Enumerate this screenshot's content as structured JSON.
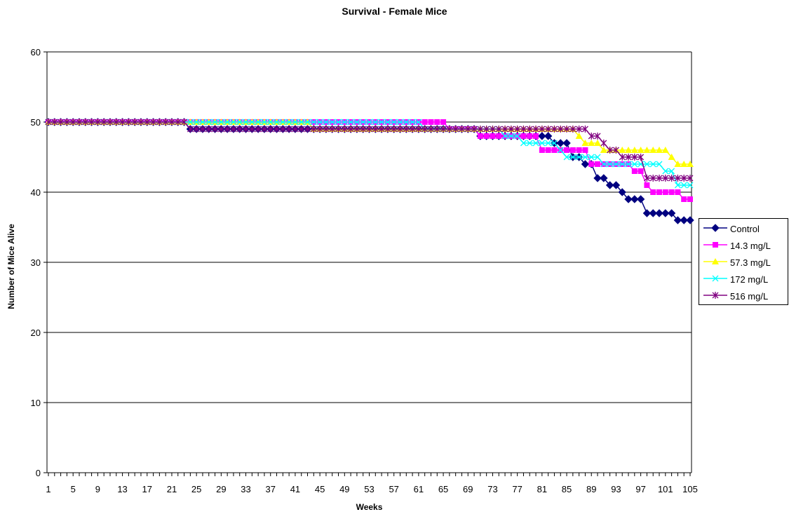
{
  "chart_data": {
    "type": "line",
    "title": "Survival - Female Mice",
    "xlabel": "Weeks",
    "ylabel": "Number of Mice Alive",
    "ylim": [
      0,
      60
    ],
    "yticks": [
      0,
      10,
      20,
      30,
      40,
      50,
      60
    ],
    "xlim": [
      1,
      105
    ],
    "x_tick_labels": [
      1,
      5,
      9,
      13,
      17,
      21,
      25,
      29,
      33,
      37,
      41,
      45,
      49,
      53,
      57,
      61,
      65,
      69,
      73,
      77,
      81,
      85,
      89,
      93,
      97,
      101,
      105
    ],
    "grid": "horizontal major gridlines",
    "legend_position": "right",
    "series": [
      {
        "name": "Control",
        "color": "#000080",
        "marker": "diamond",
        "steps": [
          [
            1,
            50
          ],
          [
            24,
            49
          ],
          [
            71,
            48
          ],
          [
            83,
            47
          ],
          [
            86,
            45
          ],
          [
            88,
            44
          ],
          [
            90,
            42
          ],
          [
            92,
            41
          ],
          [
            94,
            40
          ],
          [
            95,
            39
          ],
          [
            98,
            37
          ],
          [
            103,
            36
          ]
        ]
      },
      {
        "name": "14.3 mg/L",
        "color": "#FF00FF",
        "marker": "square",
        "steps": [
          [
            1,
            50
          ],
          [
            66,
            49
          ],
          [
            71,
            48
          ],
          [
            81,
            46
          ],
          [
            89,
            44
          ],
          [
            96,
            43
          ],
          [
            98,
            41
          ],
          [
            99,
            40
          ],
          [
            104,
            39
          ]
        ]
      },
      {
        "name": "57.3 mg/L",
        "color": "#FFFF00",
        "marker": "triangle",
        "steps": [
          [
            1,
            50
          ],
          [
            44,
            49
          ],
          [
            87,
            48
          ],
          [
            88,
            47
          ],
          [
            91,
            46
          ],
          [
            102,
            45
          ],
          [
            103,
            44
          ]
        ]
      },
      {
        "name": "172 mg/L",
        "color": "#00FFFF",
        "marker": "x",
        "steps": [
          [
            1,
            50
          ],
          [
            62,
            49
          ],
          [
            75,
            48
          ],
          [
            78,
            47
          ],
          [
            84,
            46
          ],
          [
            85,
            45
          ],
          [
            91,
            44
          ],
          [
            101,
            43
          ],
          [
            103,
            41
          ]
        ]
      },
      {
        "name": "516 mg/L",
        "color": "#800080",
        "marker": "star",
        "steps": [
          [
            1,
            50
          ],
          [
            24,
            49
          ],
          [
            89,
            48
          ],
          [
            91,
            47
          ],
          [
            92,
            46
          ],
          [
            94,
            45
          ],
          [
            98,
            42
          ]
        ]
      }
    ]
  }
}
